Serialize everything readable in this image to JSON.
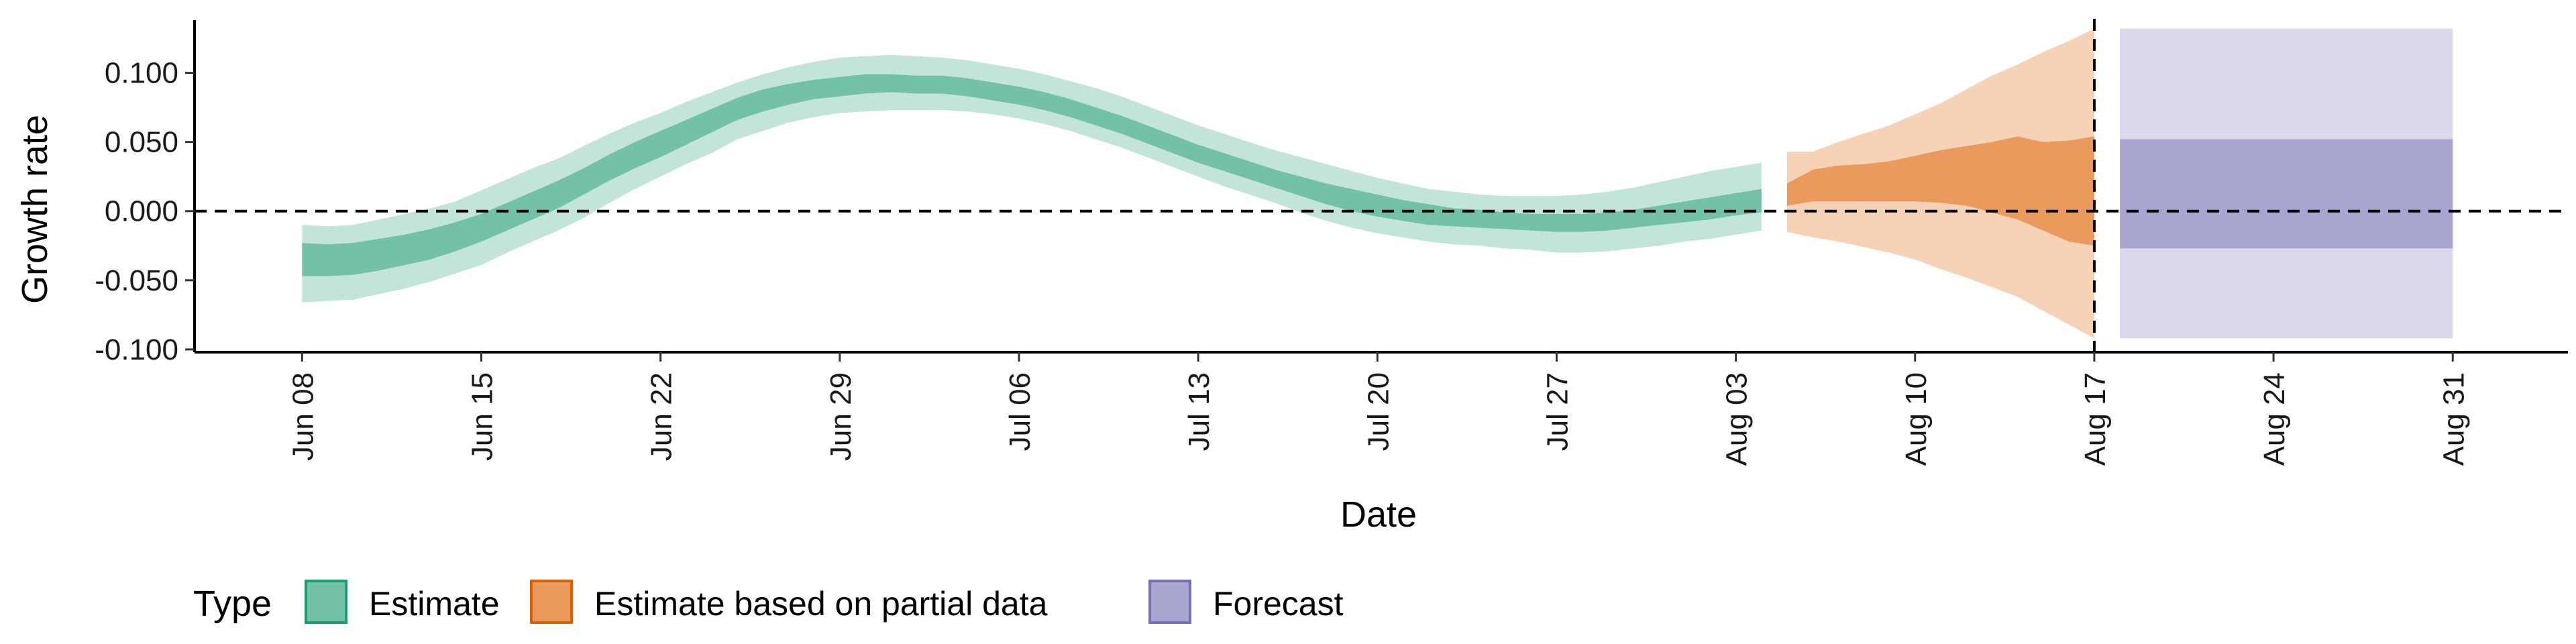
{
  "chart_data": {
    "type": "area",
    "xlabel": "Date",
    "ylabel": "Growth rate",
    "x_tick_labels": [
      "Jun 08",
      "Jun 15",
      "Jun 22",
      "Jun 29",
      "Jul 06",
      "Jul 13",
      "Jul 20",
      "Jul 27",
      "Aug 03",
      "Aug 10",
      "Aug 17",
      "Aug 24",
      "Aug 31"
    ],
    "x_tick_days": [
      0,
      7,
      14,
      21,
      28,
      35,
      42,
      49,
      56,
      63,
      70,
      77,
      84
    ],
    "y_tick_labels": [
      "-0.100",
      "-0.050",
      "0.000",
      "0.050",
      "0.100"
    ],
    "y_ticks": [
      -0.1,
      -0.05,
      0.0,
      0.05,
      0.1
    ],
    "ylim": [
      -0.102,
      0.142
    ],
    "xlim": [
      -4.2,
      88.5
    ],
    "reference_lines": {
      "horizontal_y": 0.0,
      "vertical_x_label": "Aug 17"
    },
    "legend": {
      "title": "Type",
      "position": "bottom-left",
      "entries": [
        {
          "label": "Estimate",
          "fill": "#73c2a6",
          "stroke": "#1b9e77"
        },
        {
          "label": "Estimate based on partial data",
          "fill": "#eb9a5e",
          "stroke": "#d95f02"
        },
        {
          "label": "Forecast",
          "fill": "#a8a5d1",
          "stroke": "#7570b3"
        }
      ]
    },
    "series": [
      {
        "name": "Estimate",
        "color_inner": "#73c2a6",
        "color_outer": "#c2e5d8",
        "x_days": [
          0,
          1,
          2,
          3,
          4,
          5,
          6,
          7,
          8,
          9,
          10,
          11,
          12,
          13,
          14,
          15,
          16,
          17,
          18,
          19,
          20,
          21,
          22,
          23,
          24,
          25,
          26,
          27,
          28,
          29,
          30,
          31,
          32,
          33,
          34,
          35,
          36,
          37,
          38,
          39,
          40,
          41,
          42,
          43,
          44,
          45,
          46,
          47,
          48,
          49,
          50,
          51,
          52,
          53,
          54,
          55,
          56,
          57
        ],
        "outer_lower": [
          -0.066,
          -0.065,
          -0.064,
          -0.06,
          -0.056,
          -0.051,
          -0.045,
          -0.039,
          -0.03,
          -0.022,
          -0.014,
          -0.005,
          0.006,
          0.016,
          0.025,
          0.034,
          0.042,
          0.052,
          0.058,
          0.064,
          0.068,
          0.071,
          0.072,
          0.073,
          0.073,
          0.073,
          0.072,
          0.07,
          0.067,
          0.063,
          0.058,
          0.052,
          0.046,
          0.039,
          0.032,
          0.025,
          0.018,
          0.012,
          0.006,
          -0.001,
          -0.007,
          -0.012,
          -0.016,
          -0.019,
          -0.022,
          -0.024,
          -0.025,
          -0.027,
          -0.028,
          -0.03,
          -0.03,
          -0.029,
          -0.027,
          -0.025,
          -0.022,
          -0.02,
          -0.017,
          -0.014
        ],
        "inner_lower": [
          -0.047,
          -0.047,
          -0.046,
          -0.043,
          -0.039,
          -0.035,
          -0.029,
          -0.022,
          -0.014,
          -0.006,
          0.002,
          0.012,
          0.022,
          0.031,
          0.039,
          0.048,
          0.057,
          0.066,
          0.072,
          0.077,
          0.081,
          0.083,
          0.085,
          0.086,
          0.085,
          0.085,
          0.083,
          0.08,
          0.077,
          0.073,
          0.068,
          0.062,
          0.056,
          0.049,
          0.042,
          0.035,
          0.029,
          0.023,
          0.017,
          0.011,
          0.005,
          0.0,
          -0.004,
          -0.007,
          -0.01,
          -0.011,
          -0.012,
          -0.013,
          -0.014,
          -0.015,
          -0.015,
          -0.014,
          -0.012,
          -0.01,
          -0.008,
          -0.006,
          -0.003,
          -0.001
        ],
        "inner_upper": [
          -0.023,
          -0.024,
          -0.023,
          -0.02,
          -0.017,
          -0.013,
          -0.008,
          -0.002,
          0.006,
          0.014,
          0.022,
          0.031,
          0.041,
          0.05,
          0.058,
          0.066,
          0.074,
          0.082,
          0.088,
          0.092,
          0.095,
          0.097,
          0.099,
          0.099,
          0.098,
          0.098,
          0.096,
          0.093,
          0.09,
          0.086,
          0.081,
          0.075,
          0.069,
          0.062,
          0.055,
          0.048,
          0.042,
          0.036,
          0.03,
          0.025,
          0.02,
          0.016,
          0.012,
          0.008,
          0.005,
          0.002,
          0.001,
          -0.001,
          -0.002,
          -0.002,
          -0.002,
          -0.001,
          0.001,
          0.004,
          0.007,
          0.01,
          0.013,
          0.016
        ],
        "outer_upper": [
          -0.01,
          -0.011,
          -0.01,
          -0.006,
          -0.002,
          0.002,
          0.007,
          0.015,
          0.023,
          0.031,
          0.038,
          0.047,
          0.056,
          0.064,
          0.071,
          0.079,
          0.086,
          0.093,
          0.099,
          0.104,
          0.108,
          0.111,
          0.112,
          0.113,
          0.112,
          0.111,
          0.109,
          0.106,
          0.103,
          0.099,
          0.094,
          0.089,
          0.083,
          0.076,
          0.069,
          0.062,
          0.056,
          0.05,
          0.044,
          0.039,
          0.034,
          0.029,
          0.024,
          0.02,
          0.016,
          0.014,
          0.012,
          0.011,
          0.011,
          0.011,
          0.012,
          0.014,
          0.017,
          0.021,
          0.025,
          0.029,
          0.032,
          0.035
        ]
      },
      {
        "name": "Estimate based on partial data",
        "color_inner": "#eb9a5e",
        "color_outer": "#f6d2b7",
        "x_days": [
          58,
          59,
          60,
          61,
          62,
          63,
          64,
          65,
          66,
          67,
          68,
          69,
          70
        ],
        "outer_lower": [
          -0.015,
          -0.019,
          -0.022,
          -0.026,
          -0.03,
          -0.035,
          -0.042,
          -0.048,
          -0.055,
          -0.062,
          -0.072,
          -0.082,
          -0.092
        ],
        "inner_lower": [
          0.004,
          0.007,
          0.007,
          0.007,
          0.007,
          0.007,
          0.006,
          0.004,
          -0.001,
          -0.006,
          -0.014,
          -0.022,
          -0.025
        ],
        "inner_upper": [
          0.02,
          0.03,
          0.033,
          0.034,
          0.036,
          0.04,
          0.044,
          0.047,
          0.05,
          0.054,
          0.05,
          0.051,
          0.054
        ],
        "outer_upper": [
          0.043,
          0.043,
          0.05,
          0.056,
          0.062,
          0.07,
          0.078,
          0.088,
          0.098,
          0.106,
          0.115,
          0.123,
          0.132
        ]
      },
      {
        "name": "Forecast",
        "color_inner": "#a8a5d1",
        "color_outer": "#dad9ec",
        "x_days": [
          71,
          84
        ],
        "outer_lower": [
          -0.092,
          -0.092
        ],
        "inner_lower": [
          -0.027,
          -0.027
        ],
        "inner_upper": [
          0.052,
          0.052
        ],
        "outer_upper": [
          0.132,
          0.132
        ]
      }
    ]
  }
}
